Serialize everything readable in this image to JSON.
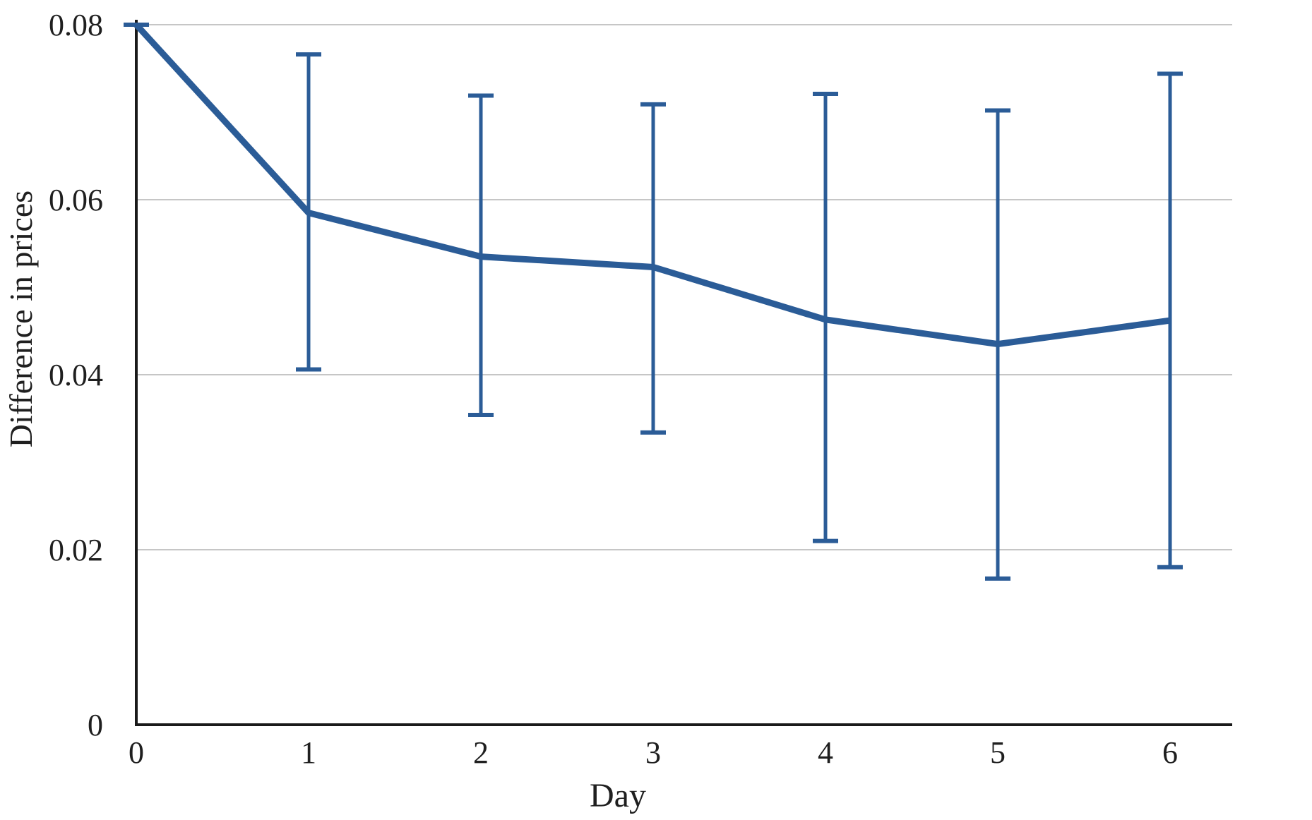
{
  "chart_data": {
    "type": "line",
    "title": "",
    "xlabel": "Day",
    "ylabel": "Difference in prices",
    "x": [
      0,
      1,
      2,
      3,
      4,
      5,
      6
    ],
    "series": [
      {
        "name": "Difference in prices",
        "values": [
          0.08,
          0.0585,
          0.0535,
          0.0523,
          0.0463,
          0.0435,
          0.0462
        ],
        "error_upper": [
          0.08,
          0.0766,
          0.0719,
          0.0709,
          0.0721,
          0.0702,
          0.0744
        ],
        "error_lower": [
          0.08,
          0.0406,
          0.0354,
          0.0334,
          0.021,
          0.0167,
          0.018
        ]
      }
    ],
    "xlim": [
      0,
      6.36
    ],
    "ylim": [
      0,
      0.08
    ],
    "xticks": [
      0,
      1,
      2,
      3,
      4,
      5,
      6
    ],
    "xtick_labels": [
      "0",
      "1",
      "2",
      "3",
      "4",
      "5",
      "6"
    ],
    "yticks": [
      0,
      0.02,
      0.04,
      0.06,
      0.08
    ],
    "ytick_labels": [
      "0",
      "0.02",
      "0.04",
      "0.06",
      "0.08"
    ],
    "grid": true,
    "legend_position": "none",
    "colors": {
      "line": "#2b5c97",
      "error_bar": "#2b5c97",
      "gridline": "#c6c6c6",
      "axis": "#1a1a1a",
      "text": "#1f1f1f",
      "background": "#ffffff"
    }
  }
}
